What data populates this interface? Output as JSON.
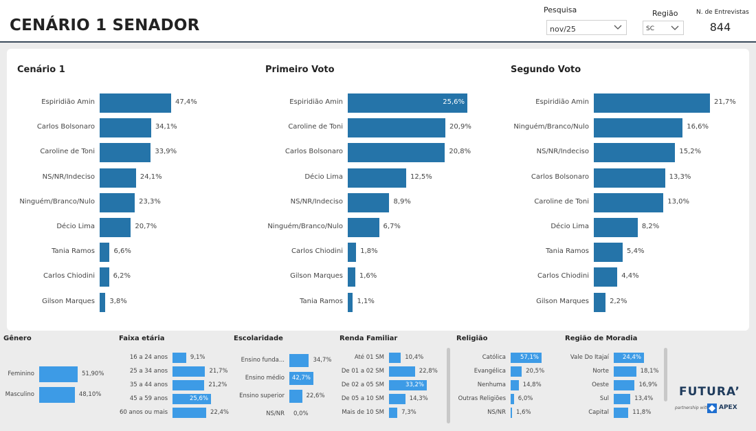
{
  "header": {
    "title": "CENÁRIO 1 SENADOR",
    "pesquisa_label": "Pesquisa",
    "pesquisa_value": "nov/25",
    "regiao_label": "Região",
    "regiao_value": "SC",
    "entrevistas_label": "N. de Entrevistas",
    "entrevistas_value": "844"
  },
  "chart_data": [
    {
      "type": "bar",
      "title": "Cenário 1",
      "orientation": "horizontal",
      "categories": [
        "Espiridião Amin",
        "Carlos Bolsonaro",
        "Caroline de Toni",
        "NS/NR/Indeciso",
        "Ninguém/Branco/Nulo",
        "Décio Lima",
        "Tania Ramos",
        "Carlos Chiodini",
        "Gilson Marques"
      ],
      "values": [
        47.4,
        34.1,
        33.9,
        24.1,
        23.3,
        20.7,
        6.6,
        6.2,
        3.8
      ],
      "labels": [
        "47,4%",
        "34,1%",
        "33,9%",
        "24,1%",
        "23,3%",
        "20,7%",
        "6,6%",
        "6,2%",
        "3,8%"
      ]
    },
    {
      "type": "bar",
      "title": "Primeiro Voto",
      "orientation": "horizontal",
      "categories": [
        "Espiridião Amin",
        "Caroline de Toni",
        "Carlos Bolsonaro",
        "Décio Lima",
        "NS/NR/Indeciso",
        "Ninguém/Branco/Nulo",
        "Carlos Chiodini",
        "Gilson Marques",
        "Tania Ramos"
      ],
      "values": [
        25.6,
        20.9,
        20.8,
        12.5,
        8.9,
        6.7,
        1.8,
        1.6,
        1.1
      ],
      "labels": [
        "25,6%",
        "20,9%",
        "20,8%",
        "12,5%",
        "8,9%",
        "6,7%",
        "1,8%",
        "1,6%",
        "1,1%"
      ]
    },
    {
      "type": "bar",
      "title": "Segundo Voto",
      "orientation": "horizontal",
      "categories": [
        "Espiridião Amin",
        "Ninguém/Branco/Nulo",
        "NS/NR/Indeciso",
        "Carlos Bolsonaro",
        "Caroline de Toni",
        "Décio Lima",
        "Tania Ramos",
        "Carlos Chiodini",
        "Gilson Marques"
      ],
      "values": [
        21.7,
        16.6,
        15.2,
        13.3,
        13.0,
        8.2,
        5.4,
        4.4,
        2.2
      ],
      "labels": [
        "21,7%",
        "16,6%",
        "15,2%",
        "13,3%",
        "13,0%",
        "8,2%",
        "5,4%",
        "4,4%",
        "2,2%"
      ]
    },
    {
      "type": "bar",
      "title": "Gênero",
      "orientation": "horizontal",
      "categories": [
        "Feminino",
        "Masculino"
      ],
      "values": [
        51.9,
        48.1
      ],
      "labels": [
        "51,90%",
        "48,10%"
      ]
    },
    {
      "type": "bar",
      "title": "Faixa etária",
      "orientation": "horizontal",
      "categories": [
        "16 a 24 anos",
        "25 a 34 anos",
        "35 a 44 anos",
        "45 a 59 anos",
        "60 anos ou mais"
      ],
      "values": [
        9.1,
        21.7,
        21.2,
        25.6,
        22.4
      ],
      "labels": [
        "9,1%",
        "21,7%",
        "21,2%",
        "25,6%",
        "22,4%"
      ]
    },
    {
      "type": "bar",
      "title": "Escolaridade",
      "orientation": "horizontal",
      "categories": [
        "Ensino funda...",
        "Ensino médio",
        "Ensino superior",
        "NS/NR"
      ],
      "values": [
        34.7,
        42.7,
        22.6,
        0.0
      ],
      "labels": [
        "34,7%",
        "42,7%",
        "22,6%",
        "0,0%"
      ]
    },
    {
      "type": "bar",
      "title": "Renda Familiar",
      "orientation": "horizontal",
      "categories": [
        "Até 01 SM",
        "De 01 a 02 SM",
        "De 02 a 05 SM",
        "De 05 a 10 SM",
        "Mais de 10 SM"
      ],
      "values": [
        10.4,
        22.8,
        33.2,
        14.3,
        7.3
      ],
      "labels": [
        "10,4%",
        "22,8%",
        "33,2%",
        "14,3%",
        "7,3%"
      ]
    },
    {
      "type": "bar",
      "title": "Religião",
      "orientation": "horizontal",
      "categories": [
        "Católica",
        "Evangélica",
        "Nenhuma",
        "Outras Religiões",
        "NS/NR"
      ],
      "values": [
        57.1,
        20.5,
        14.8,
        6.0,
        1.6
      ],
      "labels": [
        "57,1%",
        "20,5%",
        "14,8%",
        "6,0%",
        "1,6%"
      ]
    },
    {
      "type": "bar",
      "title": "Região de Moradia",
      "orientation": "horizontal",
      "categories": [
        "Vale Do Itajaí",
        "Norte",
        "Oeste",
        "Sul",
        "Capital"
      ],
      "values": [
        24.4,
        18.1,
        16.9,
        13.4,
        11.8
      ],
      "labels": [
        "24,4%",
        "18,1%",
        "16,9%",
        "13,4%",
        "11,8%"
      ]
    }
  ],
  "colors": {
    "main_bar": "#2574a9",
    "small_bar": "#3d9be6"
  },
  "logo": {
    "name": "FUTURA’",
    "partner_text": "partnership with",
    "partner_name": "APEX"
  }
}
